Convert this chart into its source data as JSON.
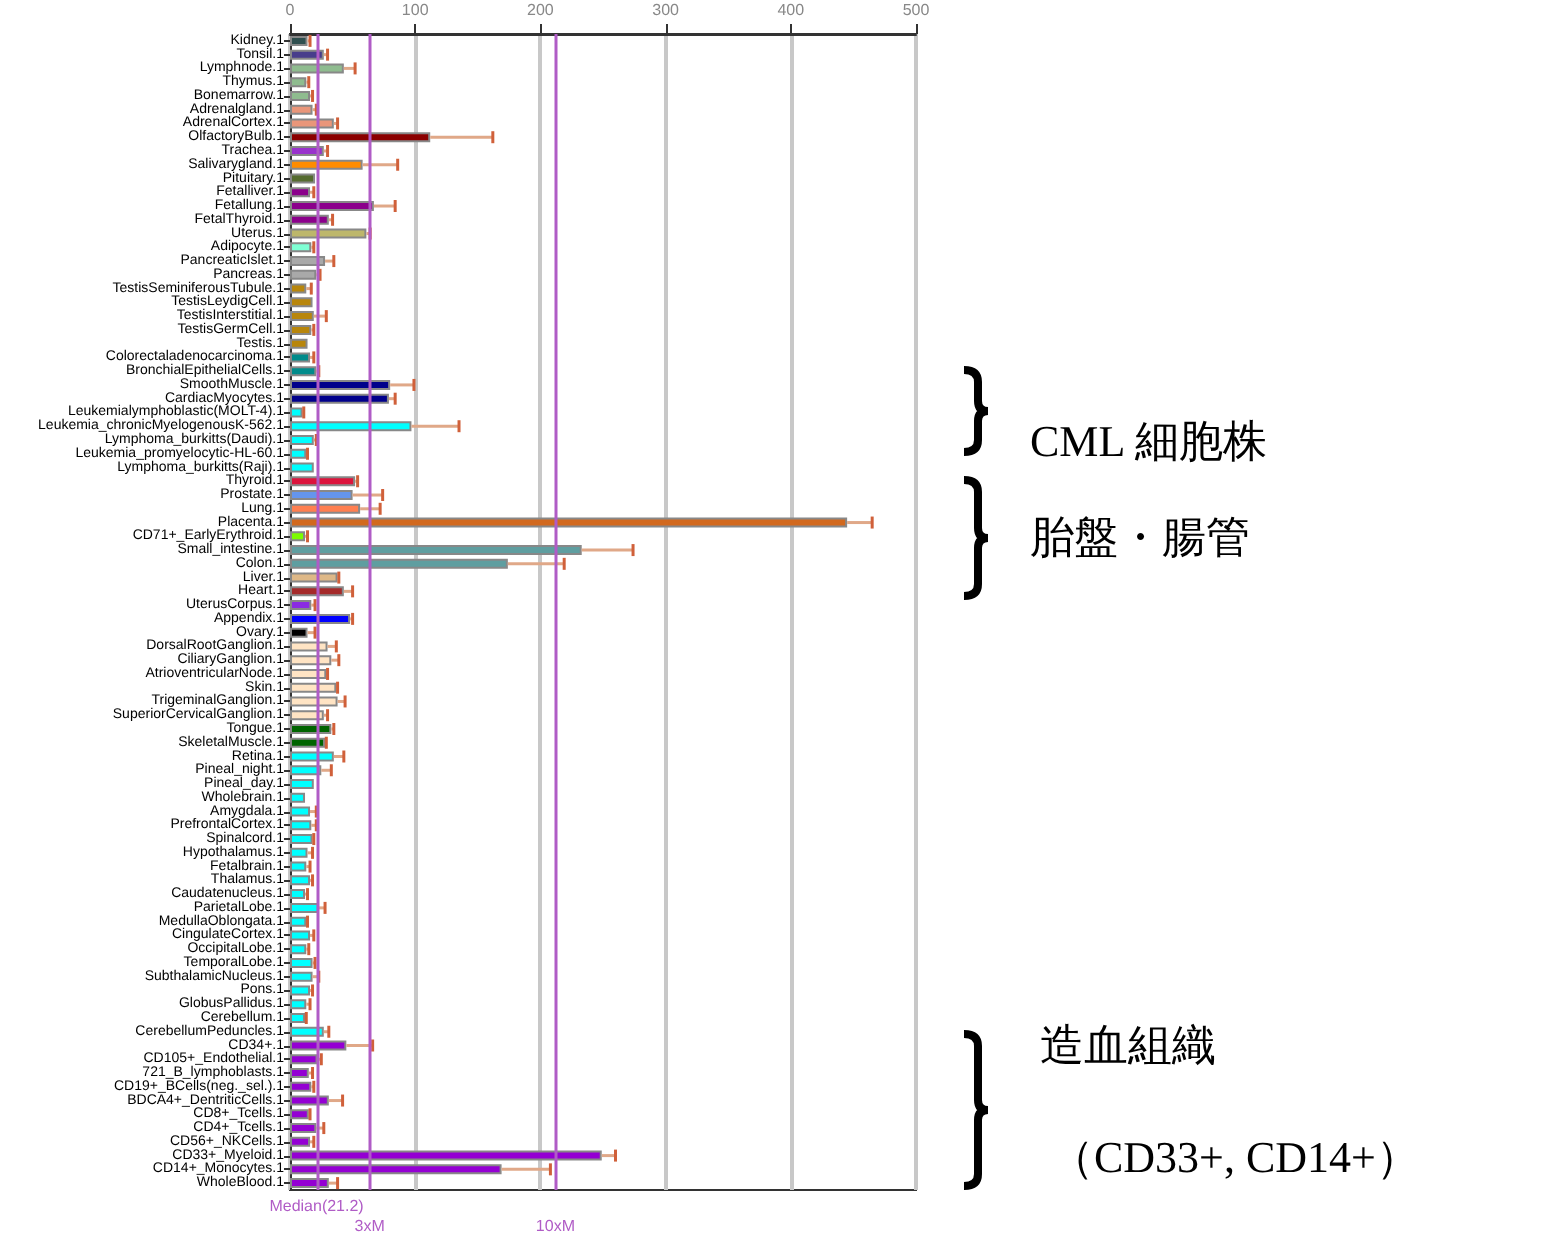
{
  "chart_data": {
    "type": "bar",
    "orientation": "horizontal",
    "categories": [
      "Kidney.1",
      "Tonsil.1",
      "Lymphnode.1",
      "Thymus.1",
      "Bonemarrow.1",
      "Adrenalgland.1",
      "AdrenalCortex.1",
      "OlfactoryBulb.1",
      "Trachea.1",
      "Salivarygland.1",
      "Pituitary.1",
      "Fetalliver.1",
      "Fetallung.1",
      "FetalThyroid.1",
      "Uterus.1",
      "Adipocyte.1",
      "PancreaticIslet.1",
      "Pancreas.1",
      "TestisSeminiferousTubule.1",
      "TestisLeydigCell.1",
      "TestisInterstitial.1",
      "TestisGermCell.1",
      "Testis.1",
      "Colorectaladenocarcinoma.1",
      "BronchialEpithelialCells.1",
      "SmoothMuscle.1",
      "CardiacMyocytes.1",
      "Leukemialymphoblastic(MOLT-4).1",
      "Leukemia_chronicMyelogenousK-562.1",
      "Lymphoma_burkitts(Daudi).1",
      "Leukemia_promyelocytic-HL-60.1",
      "Lymphoma_burkitts(Raji).1",
      "Thyroid.1",
      "Prostate.1",
      "Lung.1",
      "Placenta.1",
      "CD71+_EarlyErythroid.1",
      "Small_intestine.1",
      "Colon.1",
      "Liver.1",
      "Heart.1",
      "UterusCorpus.1",
      "Appendix.1",
      "Ovary.1",
      "DorsalRootGanglion.1",
      "CiliaryGanglion.1",
      "AtrioventricularNode.1",
      "Skin.1",
      "TrigeminalGanglion.1",
      "SuperiorCervicalGanglion.1",
      "Tongue.1",
      "SkeletalMuscle.1",
      "Retina.1",
      "Pineal_night.1",
      "Pineal_day.1",
      "Wholebrain.1",
      "Amygdala.1",
      "PrefrontalCortex.1",
      "Spinalcord.1",
      "Hypothalamus.1",
      "Fetalbrain.1",
      "Thalamus.1",
      "Caudatenucleus.1",
      "ParietalLobe.1",
      "MedullaOblongata.1",
      "CingulateCortex.1",
      "OccipitalLobe.1",
      "TemporalLobe.1",
      "SubthalamicNucleus.1",
      "Pons.1",
      "GlobusPallidus.1",
      "Cerebellum.1",
      "CerebellumPeduncles.1",
      "CD34+.1",
      "CD105+_Endothelial.1",
      "721_B_lymphoblasts.1",
      "CD19+_BCells(neg._sel.).1",
      "BDCA4+_DentriticCells.1",
      "CD8+_Tcells.1",
      "CD4+_Tcells.1",
      "CD56+_NKCells.1",
      "CD33+_Myeloid.1",
      "CD14+_Monocytes.1",
      "WholeBlood.1"
    ],
    "values": [
      14,
      27,
      43,
      13,
      16,
      18,
      35,
      112,
      27,
      58,
      20,
      16,
      67,
      31,
      61,
      17,
      28,
      21,
      13,
      18,
      19,
      17,
      14,
      16,
      21,
      80,
      79,
      10,
      97,
      19,
      13,
      19,
      52,
      50,
      56,
      445,
      12,
      233,
      174,
      38,
      43,
      17,
      48,
      14,
      30,
      33,
      29,
      37,
      38,
      27,
      33,
      28,
      35,
      25,
      19,
      12,
      16,
      17,
      18,
      14,
      13,
      16,
      12,
      23,
      13,
      16,
      13,
      18,
      18,
      16,
      13,
      12,
      27,
      45,
      22,
      15,
      17,
      31,
      15,
      21,
      16,
      249,
      169,
      31
    ],
    "errors": [
      [
        14,
        16
      ],
      [
        27,
        30
      ],
      [
        43,
        52
      ],
      [
        13,
        15
      ],
      [
        16,
        18
      ],
      [
        18,
        21
      ],
      [
        35,
        38
      ],
      [
        112,
        162
      ],
      [
        27,
        30
      ],
      [
        58,
        86
      ],
      null,
      [
        16,
        19
      ],
      [
        67,
        84
      ],
      [
        31,
        34
      ],
      [
        61,
        64
      ],
      [
        17,
        19
      ],
      [
        28,
        35
      ],
      [
        21,
        24
      ],
      [
        13,
        17
      ],
      null,
      [
        19,
        29
      ],
      [
        17,
        19
      ],
      null,
      [
        16,
        19
      ],
      [
        21,
        23
      ],
      [
        80,
        99
      ],
      [
        79,
        84
      ],
      [
        10,
        11
      ],
      [
        97,
        135
      ],
      [
        19,
        21
      ],
      [
        13,
        14
      ],
      null,
      [
        52,
        54
      ],
      [
        50,
        74
      ],
      [
        56,
        72
      ],
      [
        445,
        465
      ],
      [
        12,
        14
      ],
      [
        233,
        274
      ],
      [
        174,
        219
      ],
      [
        38,
        39
      ],
      [
        43,
        50
      ],
      [
        17,
        20
      ],
      [
        48,
        50
      ],
      [
        14,
        20
      ],
      [
        30,
        37
      ],
      [
        33,
        39
      ],
      [
        29,
        30
      ],
      [
        37,
        38
      ],
      [
        38,
        44
      ],
      [
        27,
        30
      ],
      [
        33,
        35
      ],
      [
        28,
        29
      ],
      [
        35,
        43
      ],
      [
        25,
        33
      ],
      null,
      null,
      [
        16,
        21
      ],
      [
        17,
        21
      ],
      [
        18,
        19
      ],
      [
        14,
        18
      ],
      [
        13,
        16
      ],
      [
        16,
        18
      ],
      [
        12,
        14
      ],
      [
        23,
        28
      ],
      [
        13,
        14
      ],
      [
        16,
        19
      ],
      [
        13,
        15
      ],
      [
        18,
        20
      ],
      [
        18,
        23
      ],
      [
        16,
        18
      ],
      [
        13,
        16
      ],
      [
        12,
        13
      ],
      [
        27,
        31
      ],
      [
        45,
        66
      ],
      [
        22,
        25
      ],
      [
        15,
        18
      ],
      [
        17,
        19
      ],
      [
        31,
        42
      ],
      [
        15,
        16
      ],
      [
        21,
        27
      ],
      [
        16,
        19
      ],
      [
        249,
        260
      ],
      [
        169,
        208
      ],
      [
        31,
        38
      ]
    ],
    "colors": [
      "#2f4f4f",
      "#483d8b",
      "#8fbc8f",
      "#8fbc8f",
      "#8fbc8f",
      "#e9967a",
      "#e9967a",
      "#8b0000",
      "#9932cc",
      "#ff8c00",
      "#556b2f",
      "#8b008b",
      "#8b008b",
      "#8b008b",
      "#bdb76b",
      "#7fffd4",
      "#a9a9a9",
      "#a9a9a9",
      "#b8860b",
      "#b8860b",
      "#b8860b",
      "#b8860b",
      "#b8860b",
      "#008b8b",
      "#008b8b",
      "#00008b",
      "#00008b",
      "#00ffff",
      "#00ffff",
      "#00ffff",
      "#00ffff",
      "#00ffff",
      "#dc143c",
      "#6495ed",
      "#ff7f50",
      "#d2691e",
      "#7cfc00",
      "#5f9ea0",
      "#5f9ea0",
      "#deb887",
      "#a52a2a",
      "#8a2be2",
      "#0000ff",
      "#000000",
      "#ffe4c4",
      "#ffe4c4",
      "#ffe4c4",
      "#ffe4c4",
      "#ffe4c4",
      "#ffe4c4",
      "#006400",
      "#006400",
      "#00ffff",
      "#00ffff",
      "#00ffff",
      "#00ffff",
      "#00ffff",
      "#00ffff",
      "#00ffff",
      "#00ffff",
      "#00ffff",
      "#00ffff",
      "#00ffff",
      "#00ffff",
      "#00ffff",
      "#00ffff",
      "#00ffff",
      "#00ffff",
      "#00ffff",
      "#00ffff",
      "#00ffff",
      "#00ffff",
      "#00ffff",
      "#9400d3",
      "#9400d3",
      "#9400d3",
      "#9400d3",
      "#9400d3",
      "#9400d3",
      "#9400d3",
      "#9400d3",
      "#9400d3",
      "#9400d3",
      "#9400d3"
    ],
    "xlim": [
      0,
      500
    ],
    "xticks": [
      0,
      100,
      200,
      300,
      400,
      500
    ],
    "grid": "x",
    "ref_lines": [
      {
        "axis": "x",
        "value": 21.2,
        "label": "Median(21.2)",
        "color": "#b05cc6"
      },
      {
        "axis": "x",
        "value": 63.6,
        "label": "3xM",
        "color": "#b05cc6"
      },
      {
        "axis": "x",
        "value": 212,
        "label": "10xM",
        "color": "#b05cc6"
      }
    ],
    "annotations": [
      "CML 細胞株",
      "胎盤・腸管",
      "造血組織",
      "（CD33+, CD14+）"
    ]
  }
}
